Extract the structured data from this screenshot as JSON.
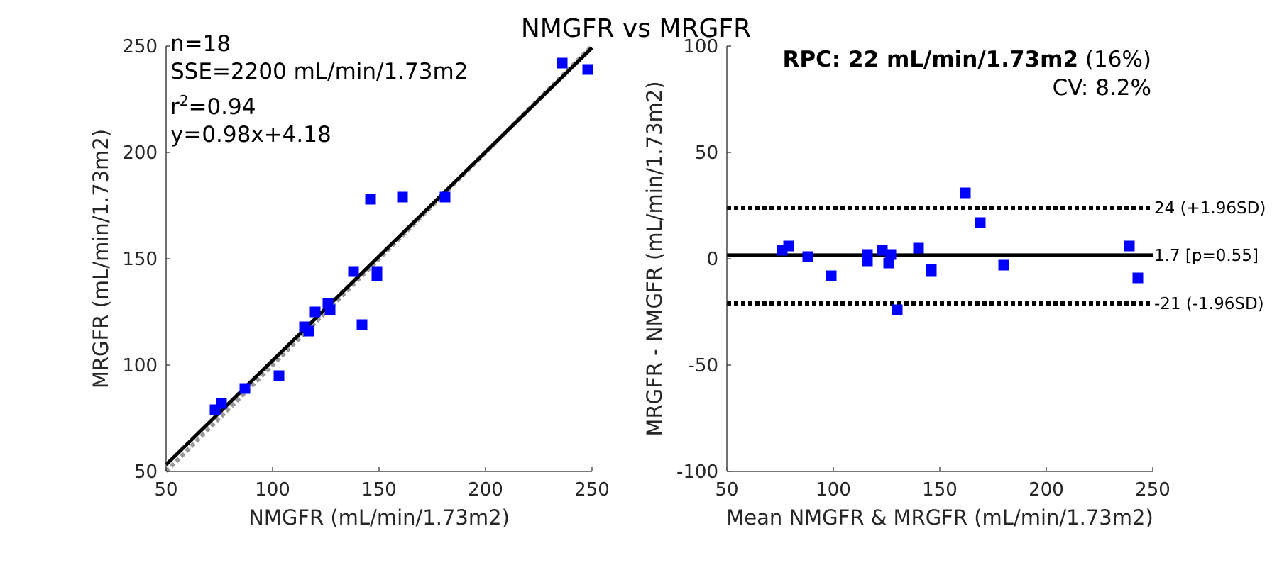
{
  "title": "NMGFR vs MRGFR",
  "colors": {
    "marker": "#0000ff",
    "fit_line": "#000000",
    "identity_line": "#999999",
    "axis": "#262626"
  },
  "chart_data": [
    {
      "type": "scatter",
      "name": "correlation",
      "xlabel": "NMGFR (mL/min/1.73m2)",
      "ylabel": "MRGFR (mL/min/1.73m2)",
      "xlim": [
        50,
        250
      ],
      "ylim": [
        50,
        250
      ],
      "xticks": [
        "50",
        "100",
        "150",
        "200",
        "250"
      ],
      "yticks": [
        "50",
        "100",
        "150",
        "200",
        "250"
      ],
      "points": [
        [
          73,
          79
        ],
        [
          76,
          82
        ],
        [
          87,
          89
        ],
        [
          103,
          95
        ],
        [
          115,
          118
        ],
        [
          117,
          116
        ],
        [
          120,
          125
        ],
        [
          126,
          129
        ],
        [
          127,
          126
        ],
        [
          138,
          144
        ],
        [
          142,
          119
        ],
        [
          146,
          178
        ],
        [
          149,
          144
        ],
        [
          149,
          142
        ],
        [
          161,
          179
        ],
        [
          181,
          179
        ],
        [
          236,
          242
        ],
        [
          248,
          239
        ]
      ],
      "fit": {
        "slope": 0.98,
        "intercept": 4.18,
        "label": "fit line"
      },
      "identity": {
        "slope": 1,
        "intercept": 0,
        "label": "identity line"
      },
      "stats": {
        "n": "n=18",
        "sse": "SSE=2200 mL/min/1.73m2",
        "r2_prefix": "r",
        "r2_sup": "2",
        "r2_value": "=0.94",
        "equation": "y=0.98x+4.18"
      }
    },
    {
      "type": "scatter",
      "name": "bland-altman",
      "xlabel": "Mean NMGFR & MRGFR (mL/min/1.73m2)",
      "ylabel": "MRGFR - NMGFR (mL/min/1.73m2)",
      "xlim": [
        50,
        250
      ],
      "ylim": [
        -100,
        100
      ],
      "xticks": [
        "50",
        "100",
        "150",
        "200",
        "250"
      ],
      "yticks": [
        "-100",
        "-50",
        "0",
        "50",
        "100"
      ],
      "points": [
        [
          76,
          4
        ],
        [
          79,
          6
        ],
        [
          88,
          1
        ],
        [
          99,
          -8
        ],
        [
          116,
          2
        ],
        [
          116,
          -1
        ],
        [
          123,
          4
        ],
        [
          126,
          -2
        ],
        [
          127,
          2
        ],
        [
          130,
          -24
        ],
        [
          140,
          5
        ],
        [
          146,
          -5
        ],
        [
          146,
          -6
        ],
        [
          162,
          31
        ],
        [
          169,
          17
        ],
        [
          180,
          -3
        ],
        [
          239,
          6
        ],
        [
          243,
          -9
        ]
      ],
      "lines": [
        {
          "y": 24,
          "style": "dotted",
          "label": "24 (+1.96SD)"
        },
        {
          "y": 1.7,
          "style": "solid",
          "label": "1.7 [p=0.55]"
        },
        {
          "y": -21,
          "style": "dotted",
          "label": "-21 (-1.96SD)"
        }
      ],
      "rpc_bold": "RPC: 22 mL/min/1.73m2",
      "rpc_pct": " (16%)",
      "cv": "CV: 8.2%"
    }
  ]
}
